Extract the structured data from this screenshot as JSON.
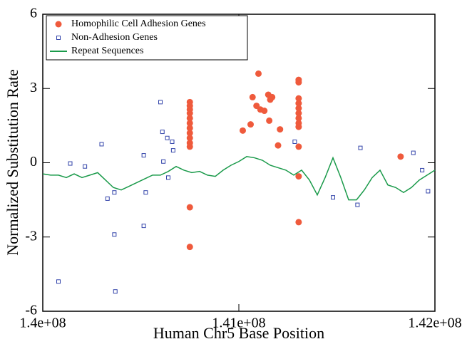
{
  "chart_data": {
    "type": "scatter",
    "xlabel": "Human Chr5 Base Position",
    "ylabel": "Normalized Substitution Rate",
    "xlim": [
      140000000,
      142000000
    ],
    "ylim": [
      -6,
      6
    ],
    "xticks": [
      {
        "value": 140000000,
        "label": "1.4e+08"
      },
      {
        "value": 141000000,
        "label": "1.41e+08"
      },
      {
        "value": 142000000,
        "label": "1.42e+08"
      }
    ],
    "yticks": [
      -6,
      -3,
      0,
      3,
      6
    ],
    "legend": "upper-left",
    "series": [
      {
        "name": "Homophilic Cell Adhesion Genes",
        "color": "#ef5a3c",
        "marker": "circle",
        "x": [
          140750000,
          140750000,
          140750000,
          140750000,
          140750000,
          140750000,
          140750000,
          140750000,
          140750000,
          140750000,
          140750000,
          140750000,
          140750000,
          141305000,
          141305000,
          141305000,
          141305000,
          141305000,
          141305000,
          141305000,
          141305000,
          141305000,
          141305000,
          141305000,
          141305000,
          141020000,
          141060000,
          141070000,
          141090000,
          141100000,
          141110000,
          141130000,
          141150000,
          141155000,
          141160000,
          141170000,
          141200000,
          141210000,
          141825000
        ],
        "values": [
          2.45,
          2.3,
          2.15,
          2.0,
          1.8,
          1.6,
          1.4,
          1.2,
          1.0,
          0.8,
          0.65,
          -1.8,
          -3.4,
          3.35,
          3.25,
          2.6,
          2.4,
          2.2,
          2.0,
          1.8,
          1.6,
          1.45,
          0.65,
          -0.55,
          -2.4,
          1.3,
          1.55,
          2.65,
          2.3,
          3.6,
          2.15,
          2.1,
          2.75,
          1.7,
          2.55,
          2.65,
          0.7,
          1.35,
          0.25
        ]
      },
      {
        "name": "Non-Adhesion Genes",
        "color": "#3344aa",
        "marker": "square",
        "x": [
          140080000,
          140140000,
          140215000,
          140300000,
          140330000,
          140365000,
          140365000,
          140370000,
          140515000,
          140525000,
          140515000,
          140600000,
          140610000,
          140615000,
          140635000,
          140660000,
          140665000,
          140640000,
          141285000,
          141480000,
          141605000,
          141620000,
          141890000,
          141935000,
          141965000
        ],
        "values": [
          -4.8,
          -0.03,
          -0.15,
          0.75,
          -1.45,
          -1.2,
          -2.9,
          -5.2,
          0.3,
          -1.2,
          -2.55,
          2.45,
          1.25,
          0.05,
          1.0,
          0.85,
          0.5,
          -0.6,
          0.85,
          -1.4,
          -1.7,
          0.6,
          0.4,
          -0.3,
          -1.15
        ]
      },
      {
        "name": "Repeat Sequences",
        "color": "#1a9a4a",
        "marker": "line",
        "x": [
          140000000,
          140040000,
          140080000,
          140120000,
          140160000,
          140200000,
          140240000,
          140280000,
          140320000,
          140360000,
          140400000,
          140440000,
          140480000,
          140520000,
          140560000,
          140600000,
          140640000,
          140680000,
          140720000,
          140760000,
          140800000,
          140840000,
          140880000,
          140920000,
          140960000,
          141000000,
          141040000,
          141080000,
          141120000,
          141160000,
          141200000,
          141240000,
          141280000,
          141320000,
          141360000,
          141400000,
          141440000,
          141480000,
          141520000,
          141560000,
          141600000,
          141640000,
          141680000,
          141720000,
          141760000,
          141800000,
          141840000,
          141880000,
          141920000,
          141960000,
          142000000
        ],
        "values": [
          -0.45,
          -0.5,
          -0.5,
          -0.6,
          -0.45,
          -0.6,
          -0.5,
          -0.4,
          -0.7,
          -1.0,
          -1.1,
          -0.95,
          -0.8,
          -0.65,
          -0.5,
          -0.5,
          -0.35,
          -0.15,
          -0.3,
          -0.4,
          -0.35,
          -0.5,
          -0.55,
          -0.3,
          -0.1,
          0.05,
          0.25,
          0.2,
          0.1,
          -0.1,
          -0.2,
          -0.3,
          -0.5,
          -0.3,
          -0.7,
          -1.3,
          -0.6,
          0.2,
          -0.6,
          -1.5,
          -1.5,
          -1.1,
          -0.6,
          -0.3,
          -0.9,
          -1.0,
          -1.2,
          -1.0,
          -0.7,
          -0.5,
          -0.3
        ]
      }
    ]
  }
}
